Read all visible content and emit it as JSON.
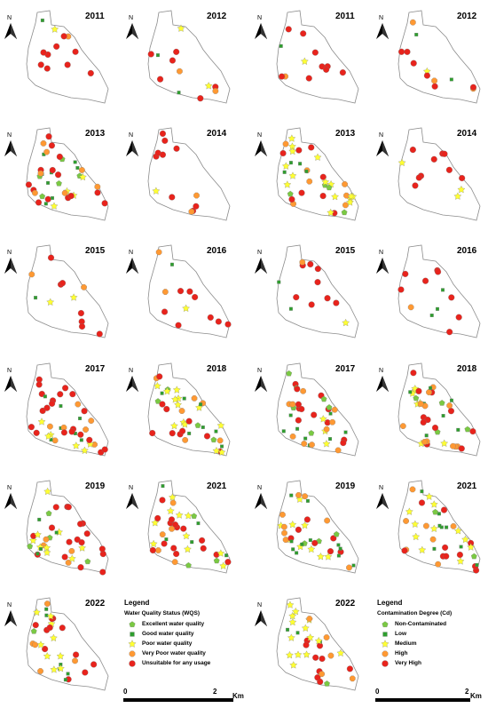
{
  "left_series": {
    "legend": {
      "title": "Legend",
      "subtitle": "Water Quality Status (WQS)",
      "items": [
        {
          "label": "Excellent water quality",
          "color": "#7ac943",
          "shape": "pentagon"
        },
        {
          "label": "Good water quality",
          "color": "#2e9e2e",
          "shape": "square"
        },
        {
          "label": "Poor water quality",
          "color": "#ffff33",
          "shape": "star"
        },
        {
          "label": "Very Poor water quality",
          "color": "#ff9933",
          "shape": "octagon"
        },
        {
          "label": "Unsuitable for any usage",
          "color": "#e8231c",
          "shape": "circle"
        }
      ]
    },
    "scale": {
      "start": "0",
      "end": "2",
      "unit": "Km"
    }
  },
  "right_series": {
    "legend": {
      "title": "Legend",
      "subtitle": "Contamination Degree (Cd)",
      "items": [
        {
          "label": "Non-Contaminated",
          "color": "#7ac943",
          "shape": "pentagon"
        },
        {
          "label": "Low",
          "color": "#2e9e2e",
          "shape": "square"
        },
        {
          "label": "Medium",
          "color": "#ffff33",
          "shape": "star"
        },
        {
          "label": "High",
          "color": "#ff9933",
          "shape": "octagon"
        },
        {
          "label": "Very High",
          "color": "#e8231c",
          "shape": "circle"
        }
      ]
    },
    "scale": {
      "start": "0",
      "end": "2",
      "unit": "Km"
    }
  },
  "north_label": "N",
  "panels": [
    {
      "year": "2011"
    },
    {
      "year": "2012"
    },
    {
      "year": "2011"
    },
    {
      "year": "2012"
    },
    {
      "year": "2013"
    },
    {
      "year": "2014"
    },
    {
      "year": "2013"
    },
    {
      "year": "2014"
    },
    {
      "year": "2015"
    },
    {
      "year": "2016"
    },
    {
      "year": "2015"
    },
    {
      "year": "2016"
    },
    {
      "year": "2017"
    },
    {
      "year": "2018"
    },
    {
      "year": "2017"
    },
    {
      "year": "2018"
    },
    {
      "year": "2019"
    },
    {
      "year": "2021"
    },
    {
      "year": "2019"
    },
    {
      "year": "2021"
    },
    {
      "year": "2022"
    },
    {
      "year": "2022"
    }
  ]
}
